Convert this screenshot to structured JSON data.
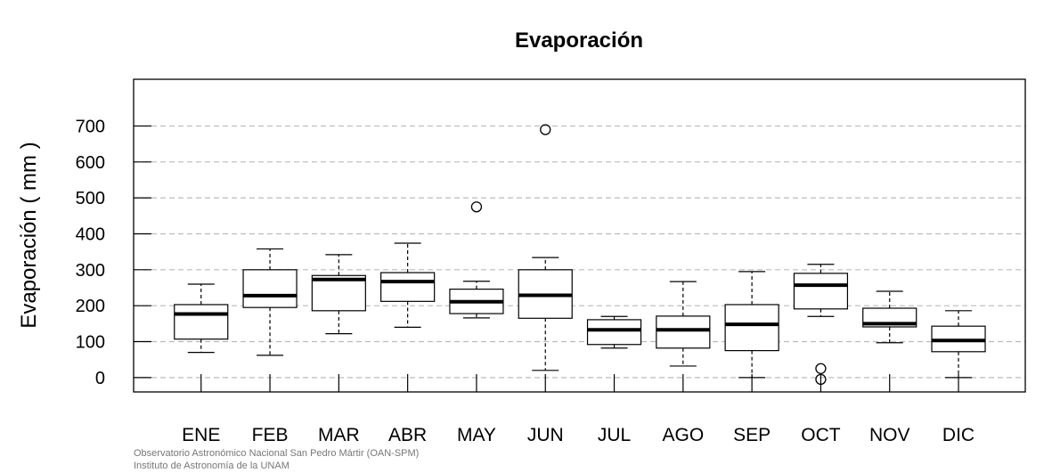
{
  "chart_data": {
    "type": "box",
    "title": "Evaporación",
    "ylabel": "Evaporación ( mm )",
    "xlabel": "",
    "ylim": [
      -40,
      830
    ],
    "yticks": [
      0,
      100,
      200,
      300,
      400,
      500,
      600,
      700
    ],
    "grid": "horizontal-dashed",
    "categories": [
      "ENE",
      "FEB",
      "MAR",
      "ABR",
      "MAY",
      "JUN",
      "JUL",
      "AGO",
      "SEP",
      "OCT",
      "NOV",
      "DIC"
    ],
    "boxes": [
      {
        "month": "ENE",
        "whisker_low": 70,
        "q1": 107,
        "median": 177,
        "q3": 203,
        "whisker_high": 260,
        "outliers": []
      },
      {
        "month": "FEB",
        "whisker_low": 62,
        "q1": 195,
        "median": 228,
        "q3": 300,
        "whisker_high": 358,
        "outliers": []
      },
      {
        "month": "MAR",
        "whisker_low": 122,
        "q1": 186,
        "median": 273,
        "q3": 284,
        "whisker_high": 342,
        "outliers": []
      },
      {
        "month": "ABR",
        "whisker_low": 140,
        "q1": 212,
        "median": 267,
        "q3": 292,
        "whisker_high": 374,
        "outliers": []
      },
      {
        "month": "MAY",
        "whisker_low": 166,
        "q1": 178,
        "median": 211,
        "q3": 246,
        "whisker_high": 268,
        "outliers": [
          475
        ]
      },
      {
        "month": "JUN",
        "whisker_low": 20,
        "q1": 165,
        "median": 229,
        "q3": 300,
        "whisker_high": 334,
        "outliers": [
          690
        ]
      },
      {
        "month": "JUL",
        "whisker_low": 82,
        "q1": 92,
        "median": 133,
        "q3": 161,
        "whisker_high": 170,
        "outliers": []
      },
      {
        "month": "AGO",
        "whisker_low": 32,
        "q1": 82,
        "median": 133,
        "q3": 171,
        "whisker_high": 267,
        "outliers": []
      },
      {
        "month": "SEP",
        "whisker_low": 0,
        "q1": 75,
        "median": 148,
        "q3": 203,
        "whisker_high": 295,
        "outliers": []
      },
      {
        "month": "OCT",
        "whisker_low": 170,
        "q1": 191,
        "median": 257,
        "q3": 290,
        "whisker_high": 315,
        "outliers": [
          25,
          -5
        ]
      },
      {
        "month": "NOV",
        "whisker_low": 97,
        "q1": 141,
        "median": 150,
        "q3": 193,
        "whisker_high": 240,
        "outliers": []
      },
      {
        "month": "DIC",
        "whisker_low": 0,
        "q1": 72,
        "median": 103,
        "q3": 143,
        "whisker_high": 186,
        "outliers": []
      }
    ]
  },
  "credits": {
    "line1": "Observatorio Astronómico Nacional San Pedro Mártir (OAN-SPM)",
    "line2": "Instituto de Astronomía de la UNAM"
  }
}
